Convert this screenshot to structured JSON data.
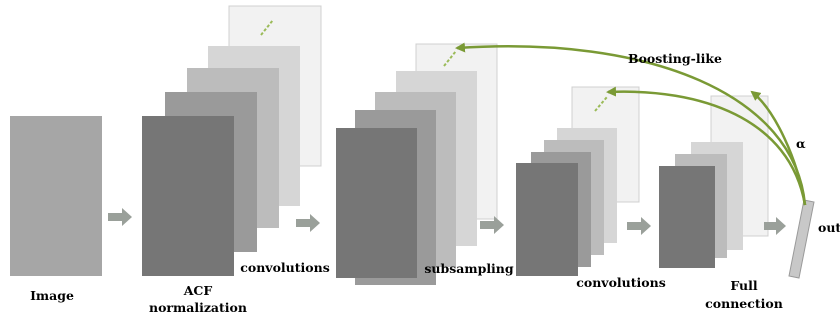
{
  "labels": {
    "image": "Image",
    "acf_line1": "ACF",
    "acf_line2": "normalization",
    "convolutions_1": "convolutions",
    "subsampling": "subsampling",
    "convolutions_2": "convolutions",
    "full_line1": "Full",
    "full_line2": "connection",
    "boosting": "Boosting-like",
    "alpha": "α",
    "output": "out"
  },
  "colors": {
    "layer_dark": "#767676",
    "layer_mid": "#9a9a9a",
    "layer_light": "#bcbcbc",
    "layer_lighter": "#d6d6d6",
    "layer_lightest": "#f2f2f2",
    "input_image": "#a6a6a6",
    "flow_arrow": "#9aa09a",
    "boost_arrow": "#7a9a35",
    "dash": "#9bbb59",
    "output_bar": "#c8c8c8"
  }
}
